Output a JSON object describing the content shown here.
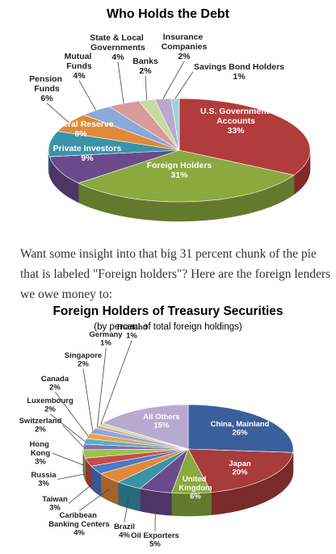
{
  "chart_data": [
    {
      "type": "pie3d",
      "title": "Who Holds the Debt",
      "categories": [
        "U.S. Government Accounts",
        "Foreign Holders",
        "Private Investors",
        "Federal Reserve",
        "Pension Funds",
        "Mutual Funds",
        "State & Local Governments",
        "Banks",
        "Insurance Companies",
        "Savings Bond Holders"
      ],
      "values": [
        33,
        31,
        9,
        8,
        6,
        4,
        4,
        2,
        2,
        1
      ],
      "value_labels": [
        "33%",
        "31%",
        "9%",
        "8%",
        "6%",
        "4%",
        "4%",
        "2%",
        "2%",
        "1%"
      ],
      "colors": [
        "#b23b3b",
        "#8aa93f",
        "#6b4a8c",
        "#3a93aa",
        "#e08a3a",
        "#8aa8d8",
        "#d89a9a",
        "#c9d9a2",
        "#b9a9d1",
        "#a2d0da"
      ]
    },
    {
      "type": "pie3d",
      "title": "Foreign Holders of Treasury Securities",
      "subtitle": "(by percent of total foreign holdings)",
      "categories": [
        "China, Mainland",
        "Japan",
        "United Kingdom",
        "Oil Exporters",
        "Brazil",
        "Caribbean Banking Centers",
        "Taiwan",
        "Russia",
        "Hong Kong",
        "Switzerland",
        "Luxembourg",
        "Canada",
        "Singapore",
        "Germany",
        "Thailand",
        "All Others"
      ],
      "values": [
        26,
        20,
        6,
        5,
        4,
        4,
        3,
        3,
        3,
        2,
        2,
        2,
        2,
        1,
        1,
        15
      ],
      "value_labels": [
        "26%",
        "20%",
        "6%",
        "5%",
        "4%",
        "4%",
        "3%",
        "3%",
        "3%",
        "2%",
        "2%",
        "2%",
        "2%",
        "1%",
        "1%",
        "15%"
      ],
      "colors": [
        "#3b5f9b",
        "#a83b3b",
        "#8aa93f",
        "#6b4a8c",
        "#3a93aa",
        "#e08a3a",
        "#4a7bc9",
        "#c94b4b",
        "#9bc152",
        "#8a6bb1",
        "#52b0c9",
        "#f0a052",
        "#8aa8d8",
        "#e0a0a0",
        "#c9e0a2",
        "#b9a9d1"
      ]
    }
  ],
  "paragraph": "Want some insight into that big 31 percent chunk of the pie that is labeled \"Foreign holders\"? Here are the foreign lenders we owe money to:"
}
